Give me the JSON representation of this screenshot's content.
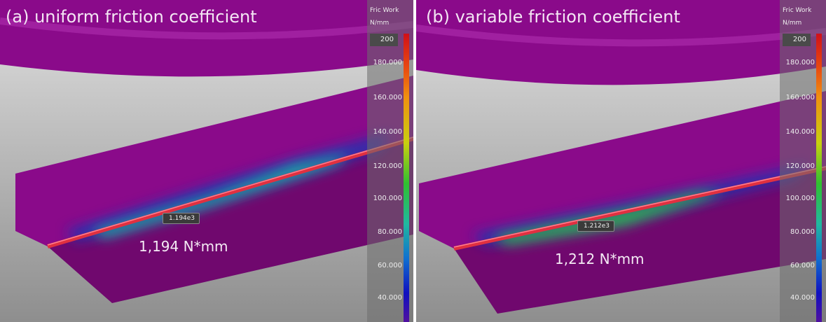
{
  "panels": [
    {
      "title": "(a) uniform friction coefficient",
      "result": "1,194 N*mm",
      "probe": "1.194e3",
      "legend": {
        "title": "Fric Work",
        "unit": "N/mm",
        "max": "200",
        "ticks": [
          "180.000",
          "160.000",
          "140.000",
          "120.000",
          "100.000",
          "80.000",
          "60.000",
          "40.000"
        ]
      }
    },
    {
      "title": "(b) variable friction coefficient",
      "result": "1,212 N*mm",
      "probe": "1.212e3",
      "legend": {
        "title": "Fric Work",
        "unit": "N/mm",
        "max": "200",
        "ticks": [
          "180.000",
          "160.000",
          "140.000",
          "120.000",
          "100.000",
          "80.000",
          "60.000",
          "40.000"
        ]
      }
    }
  ],
  "colors": {
    "part": "#8a0a8a",
    "weld": "#e03040",
    "background": "#b8b8b8"
  }
}
